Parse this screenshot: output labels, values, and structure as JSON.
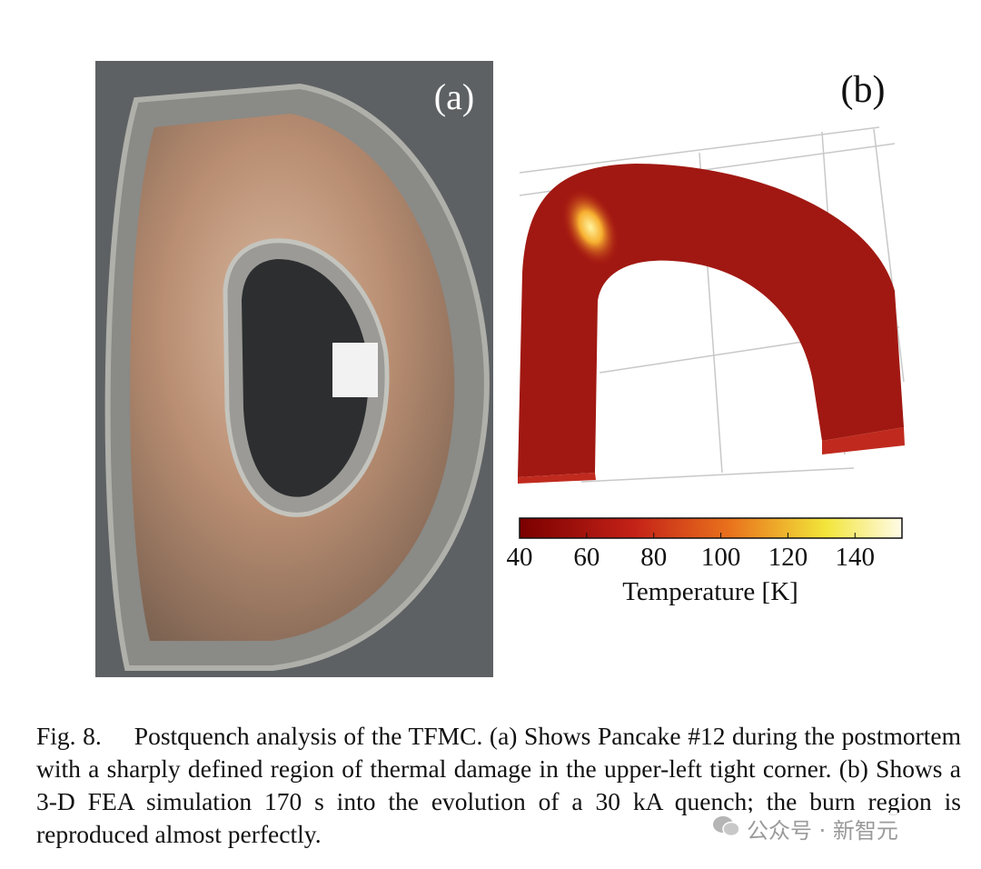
{
  "figure": {
    "panel_a_label": "(a)",
    "panel_b_label": "(b)",
    "colorbar": {
      "label": "Temperature [K]",
      "lim": [
        40,
        154
      ],
      "ticks": [
        40,
        60,
        80,
        100,
        120,
        140
      ]
    },
    "caption": {
      "label": "Fig. 8.",
      "text": "Postquench analysis of the TFMC. (a) Shows Pancake #12 during the postmortem with a sharply defined region of thermal damage in the upper-left tight corner. (b) Shows a 3-D FEA simulation 170 s into the evolution of a 30 kA quench; the burn region is reproduced almost perfectly."
    }
  },
  "watermark": "公众号 · 新智元"
}
